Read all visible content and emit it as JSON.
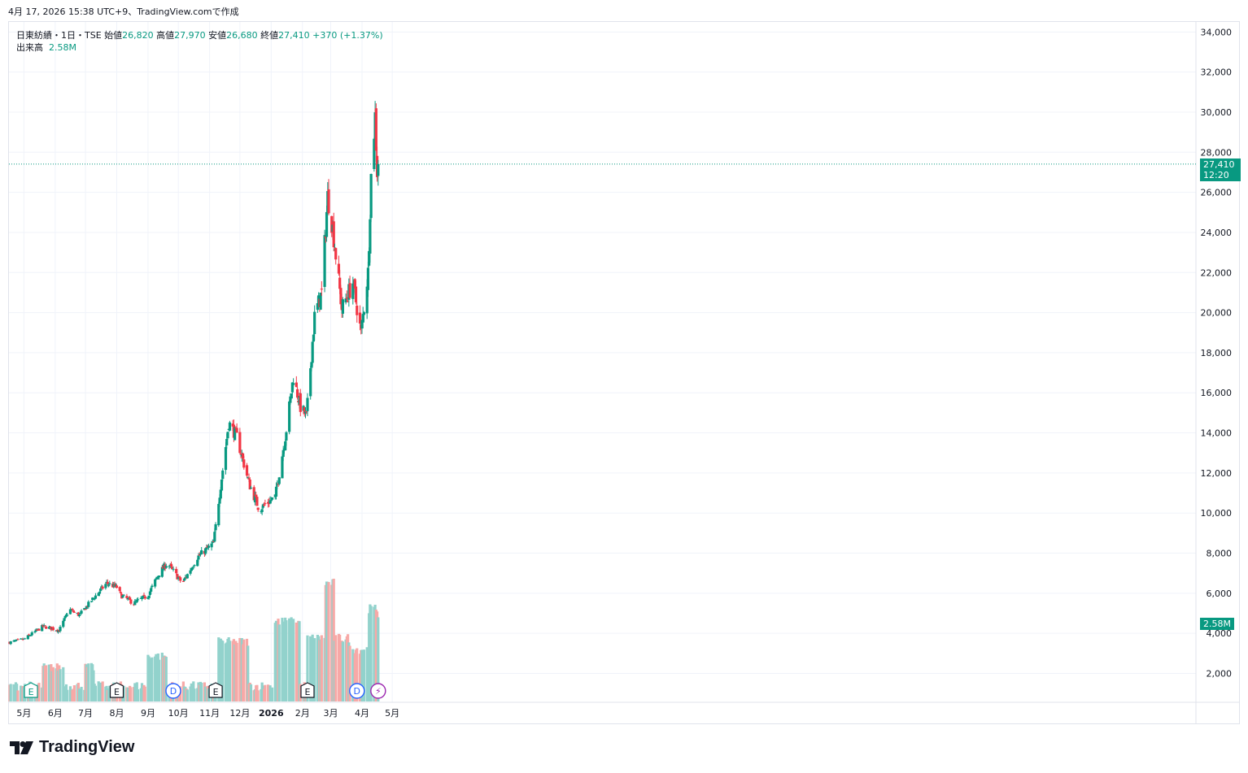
{
  "caption": "4月 17, 2026 15:38 UTC+9、TradingView.comで作成",
  "legend": {
    "symbol": "日東紡績・1日・TSE",
    "open_label": "始値",
    "open": "26,820",
    "high_label": "高値",
    "high": "27,970",
    "low_label": "安値",
    "low": "26,680",
    "close_label": "終値",
    "close": "27,410",
    "change": "+370 (+1.37%)",
    "volume_label": "出来高",
    "volume": "2.58M"
  },
  "price_tag": {
    "price": "27,410",
    "time": "12:20"
  },
  "volume_tag": "2.58M",
  "brand": "TradingView",
  "colors": {
    "up": "#089981",
    "down": "#f23645",
    "up_vol": "#92d2cc",
    "down_vol": "#f7a9a7",
    "grid": "#f0f3fa"
  },
  "chart_data": {
    "type": "candlestick",
    "title": "日東紡績・1日・TSE",
    "y_ticks": [
      "2,000",
      "4,000",
      "6,000",
      "8,000",
      "10,000",
      "12,000",
      "14,000",
      "16,000",
      "18,000",
      "20,000",
      "22,000",
      "24,000",
      "26,000",
      "28,000",
      "30,000",
      "32,000",
      "34,000"
    ],
    "x_ticks": [
      "5月",
      "6月",
      "7月",
      "8月",
      "9月",
      "10月",
      "11月",
      "12月",
      "2026",
      "2月",
      "3月",
      "4月",
      "5月"
    ],
    "ylim": [
      600,
      34500
    ],
    "last_price": 27410,
    "anchors": [
      {
        "date": "2025-04-17",
        "close": 3550
      },
      {
        "date": "2025-05-01",
        "close": 3700
      },
      {
        "date": "2025-05-20",
        "close": 4350
      },
      {
        "date": "2025-06-05",
        "close": 4150
      },
      {
        "date": "2025-06-15",
        "close": 5200
      },
      {
        "date": "2025-06-25",
        "close": 4900
      },
      {
        "date": "2025-07-08",
        "close": 5700
      },
      {
        "date": "2025-07-22",
        "close": 6500
      },
      {
        "date": "2025-08-01",
        "close": 6300
      },
      {
        "date": "2025-08-05",
        "close": 5900
      },
      {
        "date": "2025-08-18",
        "close": 5500
      },
      {
        "date": "2025-09-01",
        "close": 5900
      },
      {
        "date": "2025-09-12",
        "close": 7000
      },
      {
        "date": "2025-09-20",
        "close": 7500
      },
      {
        "date": "2025-10-05",
        "close": 6500
      },
      {
        "date": "2025-10-20",
        "close": 7800
      },
      {
        "date": "2025-11-05",
        "close": 8500
      },
      {
        "date": "2025-11-10",
        "close": 10600
      },
      {
        "date": "2025-11-20",
        "close": 14500
      },
      {
        "date": "2025-11-28",
        "close": 13800
      },
      {
        "date": "2025-12-10",
        "close": 11500
      },
      {
        "date": "2025-12-20",
        "close": 10200
      },
      {
        "date": "2026-01-05",
        "close": 10800
      },
      {
        "date": "2026-01-15",
        "close": 13800
      },
      {
        "date": "2026-01-23",
        "close": 16800
      },
      {
        "date": "2026-01-30",
        "close": 15300
      },
      {
        "date": "2026-02-05",
        "close": 14800
      },
      {
        "date": "2026-02-13",
        "close": 19800
      },
      {
        "date": "2026-02-20",
        "close": 21000
      },
      {
        "date": "2026-02-26",
        "close": 25800
      },
      {
        "date": "2026-03-03",
        "close": 24200
      },
      {
        "date": "2026-03-12",
        "close": 20200
      },
      {
        "date": "2026-03-23",
        "close": 21500
      },
      {
        "date": "2026-03-31",
        "close": 19000
      },
      {
        "date": "2026-04-07",
        "close": 22000
      },
      {
        "date": "2026-04-10",
        "close": 26800
      },
      {
        "date": "2026-04-14",
        "close": 29800
      },
      {
        "date": "2026-04-16",
        "close": 27040
      },
      {
        "date": "2026-04-17",
        "close": 27410
      }
    ],
    "event_markers": [
      {
        "label": "E",
        "date": "2025-05-08"
      },
      {
        "label": "E",
        "date": "2025-08-01"
      },
      {
        "label": "D",
        "date": "2025-09-26"
      },
      {
        "label": "E",
        "date": "2025-11-07"
      },
      {
        "label": "E",
        "date": "2026-02-06"
      },
      {
        "label": "D",
        "date": "2026-03-27"
      },
      {
        "label": "⚡",
        "date": "2026-04-17"
      }
    ]
  }
}
